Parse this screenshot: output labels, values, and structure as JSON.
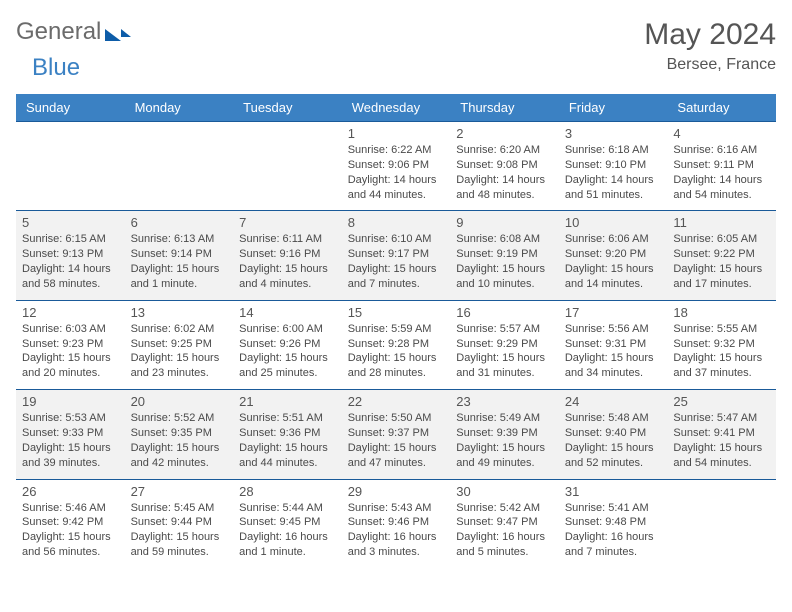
{
  "brand": {
    "general": "General",
    "blue": "Blue"
  },
  "title": "May 2024",
  "location": "Bersee, France",
  "dayNames": [
    "Sunday",
    "Monday",
    "Tuesday",
    "Wednesday",
    "Thursday",
    "Friday",
    "Saturday"
  ],
  "colors": {
    "header_bg": "#3b81c3",
    "border": "#1a5a99",
    "shade": "#f2f2f2",
    "text": "#4a4a4a",
    "title": "#555555",
    "logo_blue": "#3b81c3",
    "logo_dark": "#0d5ca8"
  },
  "rows": [
    {
      "shade": false,
      "cells": [
        {
          "day": "",
          "sunrise": "",
          "sunset": "",
          "daylight": ""
        },
        {
          "day": "",
          "sunrise": "",
          "sunset": "",
          "daylight": ""
        },
        {
          "day": "",
          "sunrise": "",
          "sunset": "",
          "daylight": ""
        },
        {
          "day": "1",
          "sunrise": "Sunrise: 6:22 AM",
          "sunset": "Sunset: 9:06 PM",
          "daylight": "Daylight: 14 hours and 44 minutes."
        },
        {
          "day": "2",
          "sunrise": "Sunrise: 6:20 AM",
          "sunset": "Sunset: 9:08 PM",
          "daylight": "Daylight: 14 hours and 48 minutes."
        },
        {
          "day": "3",
          "sunrise": "Sunrise: 6:18 AM",
          "sunset": "Sunset: 9:10 PM",
          "daylight": "Daylight: 14 hours and 51 minutes."
        },
        {
          "day": "4",
          "sunrise": "Sunrise: 6:16 AM",
          "sunset": "Sunset: 9:11 PM",
          "daylight": "Daylight: 14 hours and 54 minutes."
        }
      ]
    },
    {
      "shade": true,
      "cells": [
        {
          "day": "5",
          "sunrise": "Sunrise: 6:15 AM",
          "sunset": "Sunset: 9:13 PM",
          "daylight": "Daylight: 14 hours and 58 minutes."
        },
        {
          "day": "6",
          "sunrise": "Sunrise: 6:13 AM",
          "sunset": "Sunset: 9:14 PM",
          "daylight": "Daylight: 15 hours and 1 minute."
        },
        {
          "day": "7",
          "sunrise": "Sunrise: 6:11 AM",
          "sunset": "Sunset: 9:16 PM",
          "daylight": "Daylight: 15 hours and 4 minutes."
        },
        {
          "day": "8",
          "sunrise": "Sunrise: 6:10 AM",
          "sunset": "Sunset: 9:17 PM",
          "daylight": "Daylight: 15 hours and 7 minutes."
        },
        {
          "day": "9",
          "sunrise": "Sunrise: 6:08 AM",
          "sunset": "Sunset: 9:19 PM",
          "daylight": "Daylight: 15 hours and 10 minutes."
        },
        {
          "day": "10",
          "sunrise": "Sunrise: 6:06 AM",
          "sunset": "Sunset: 9:20 PM",
          "daylight": "Daylight: 15 hours and 14 minutes."
        },
        {
          "day": "11",
          "sunrise": "Sunrise: 6:05 AM",
          "sunset": "Sunset: 9:22 PM",
          "daylight": "Daylight: 15 hours and 17 minutes."
        }
      ]
    },
    {
      "shade": false,
      "cells": [
        {
          "day": "12",
          "sunrise": "Sunrise: 6:03 AM",
          "sunset": "Sunset: 9:23 PM",
          "daylight": "Daylight: 15 hours and 20 minutes."
        },
        {
          "day": "13",
          "sunrise": "Sunrise: 6:02 AM",
          "sunset": "Sunset: 9:25 PM",
          "daylight": "Daylight: 15 hours and 23 minutes."
        },
        {
          "day": "14",
          "sunrise": "Sunrise: 6:00 AM",
          "sunset": "Sunset: 9:26 PM",
          "daylight": "Daylight: 15 hours and 25 minutes."
        },
        {
          "day": "15",
          "sunrise": "Sunrise: 5:59 AM",
          "sunset": "Sunset: 9:28 PM",
          "daylight": "Daylight: 15 hours and 28 minutes."
        },
        {
          "day": "16",
          "sunrise": "Sunrise: 5:57 AM",
          "sunset": "Sunset: 9:29 PM",
          "daylight": "Daylight: 15 hours and 31 minutes."
        },
        {
          "day": "17",
          "sunrise": "Sunrise: 5:56 AM",
          "sunset": "Sunset: 9:31 PM",
          "daylight": "Daylight: 15 hours and 34 minutes."
        },
        {
          "day": "18",
          "sunrise": "Sunrise: 5:55 AM",
          "sunset": "Sunset: 9:32 PM",
          "daylight": "Daylight: 15 hours and 37 minutes."
        }
      ]
    },
    {
      "shade": true,
      "cells": [
        {
          "day": "19",
          "sunrise": "Sunrise: 5:53 AM",
          "sunset": "Sunset: 9:33 PM",
          "daylight": "Daylight: 15 hours and 39 minutes."
        },
        {
          "day": "20",
          "sunrise": "Sunrise: 5:52 AM",
          "sunset": "Sunset: 9:35 PM",
          "daylight": "Daylight: 15 hours and 42 minutes."
        },
        {
          "day": "21",
          "sunrise": "Sunrise: 5:51 AM",
          "sunset": "Sunset: 9:36 PM",
          "daylight": "Daylight: 15 hours and 44 minutes."
        },
        {
          "day": "22",
          "sunrise": "Sunrise: 5:50 AM",
          "sunset": "Sunset: 9:37 PM",
          "daylight": "Daylight: 15 hours and 47 minutes."
        },
        {
          "day": "23",
          "sunrise": "Sunrise: 5:49 AM",
          "sunset": "Sunset: 9:39 PM",
          "daylight": "Daylight: 15 hours and 49 minutes."
        },
        {
          "day": "24",
          "sunrise": "Sunrise: 5:48 AM",
          "sunset": "Sunset: 9:40 PM",
          "daylight": "Daylight: 15 hours and 52 minutes."
        },
        {
          "day": "25",
          "sunrise": "Sunrise: 5:47 AM",
          "sunset": "Sunset: 9:41 PM",
          "daylight": "Daylight: 15 hours and 54 minutes."
        }
      ]
    },
    {
      "shade": false,
      "cells": [
        {
          "day": "26",
          "sunrise": "Sunrise: 5:46 AM",
          "sunset": "Sunset: 9:42 PM",
          "daylight": "Daylight: 15 hours and 56 minutes."
        },
        {
          "day": "27",
          "sunrise": "Sunrise: 5:45 AM",
          "sunset": "Sunset: 9:44 PM",
          "daylight": "Daylight: 15 hours and 59 minutes."
        },
        {
          "day": "28",
          "sunrise": "Sunrise: 5:44 AM",
          "sunset": "Sunset: 9:45 PM",
          "daylight": "Daylight: 16 hours and 1 minute."
        },
        {
          "day": "29",
          "sunrise": "Sunrise: 5:43 AM",
          "sunset": "Sunset: 9:46 PM",
          "daylight": "Daylight: 16 hours and 3 minutes."
        },
        {
          "day": "30",
          "sunrise": "Sunrise: 5:42 AM",
          "sunset": "Sunset: 9:47 PM",
          "daylight": "Daylight: 16 hours and 5 minutes."
        },
        {
          "day": "31",
          "sunrise": "Sunrise: 5:41 AM",
          "sunset": "Sunset: 9:48 PM",
          "daylight": "Daylight: 16 hours and 7 minutes."
        },
        {
          "day": "",
          "sunrise": "",
          "sunset": "",
          "daylight": ""
        }
      ]
    }
  ]
}
